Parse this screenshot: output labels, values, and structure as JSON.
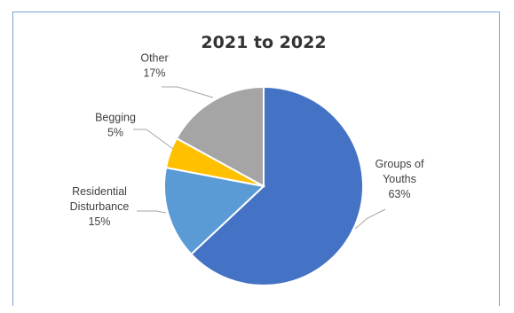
{
  "chart_data": {
    "type": "pie",
    "title": "2021 to 2022",
    "slices": [
      {
        "label_lines": [
          "Groups of",
          "Youths"
        ],
        "pct_label": "63%",
        "value": 63,
        "color": "#4472c4"
      },
      {
        "label_lines": [
          "Residential",
          "Disturbance"
        ],
        "pct_label": "15%",
        "value": 15,
        "color": "#5b9bd5"
      },
      {
        "label_lines": [
          "Begging"
        ],
        "pct_label": "5%",
        "value": 5,
        "color": "#ffc000"
      },
      {
        "label_lines": [
          "Other"
        ],
        "pct_label": "17%",
        "value": 17,
        "color": "#a5a5a5"
      }
    ],
    "start_angle_deg": 0,
    "direction": "clockwise",
    "data_labels": "outside-with-leader-lines",
    "legend": "none"
  }
}
